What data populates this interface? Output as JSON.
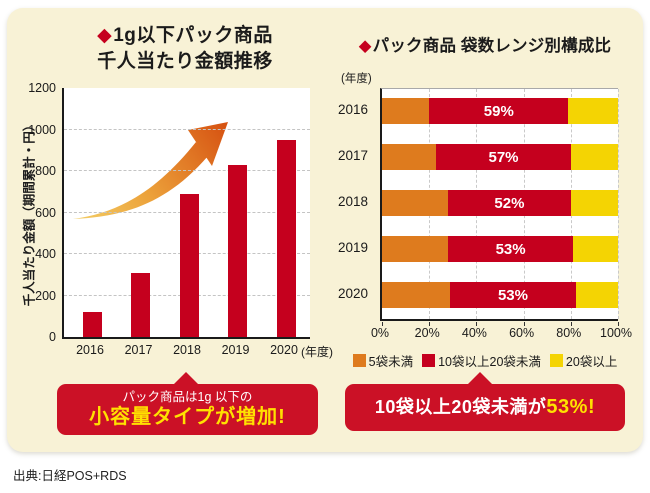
{
  "decor": {
    "diamond": "◆"
  },
  "source": "出典:日経POS+RDS",
  "colors": {
    "panel_bg": "#f8f2d6",
    "bar_red": "#c5001e",
    "orange": "#de7b1e",
    "yellow": "#f4d403",
    "callout_red": "#cb1126",
    "highlight_yellow": "#ffe100",
    "arrow_gradient": [
      "#f4d269",
      "#eca13a",
      "#d65312"
    ]
  },
  "left_chart": {
    "title_line1": "1g以下パック商品",
    "title_line2": "千人当たり金額推移"
  },
  "right_chart": {
    "title": "パック商品 袋数レンジ別構成比"
  },
  "left_callout": {
    "line1": "パック商品は1g 以下の",
    "line2": "小容量タイプが増加!"
  },
  "right_callout": {
    "prefix": "10袋以上20袋未満が",
    "highlight": "53%!"
  },
  "chart_data": [
    {
      "type": "bar",
      "title": "1g以下パック商品 千人当たり金額推移",
      "categories": [
        "2016",
        "2017",
        "2018",
        "2019",
        "2020"
      ],
      "values": [
        120,
        310,
        690,
        830,
        950
      ],
      "ylabel": "千人当たり金額（期間累計・円）",
      "x_unit": "(年度)",
      "ylim": [
        0,
        1200
      ],
      "yticks": [
        0,
        200,
        400,
        600,
        800,
        1000,
        1200
      ],
      "bar_color": "#c5001e",
      "grid": "horizontal-dashed",
      "annotation": "growth-arrow"
    },
    {
      "type": "stacked-bar-horizontal",
      "title": "パック商品 袋数レンジ別構成比",
      "unit_label": "(年度)",
      "categories": [
        "2016",
        "2017",
        "2018",
        "2019",
        "2020"
      ],
      "series": [
        {
          "name": "5袋未満",
          "color": "#de7b1e",
          "values": [
            20,
            23,
            28,
            28,
            29
          ],
          "show_label": false
        },
        {
          "name": "10袋以上20袋未満",
          "color": "#c5001e",
          "values": [
            59,
            57,
            52,
            53,
            53
          ],
          "show_label": true
        },
        {
          "name": "20袋以上",
          "color": "#f4d403",
          "values": [
            21,
            20,
            20,
            19,
            18
          ],
          "show_label": false
        }
      ],
      "xlim": [
        0,
        100
      ],
      "xticks": [
        "0%",
        "20%",
        "40%",
        "60%",
        "80%",
        "100%"
      ],
      "grid": "vertical-dashed",
      "legend_position": "bottom"
    }
  ]
}
